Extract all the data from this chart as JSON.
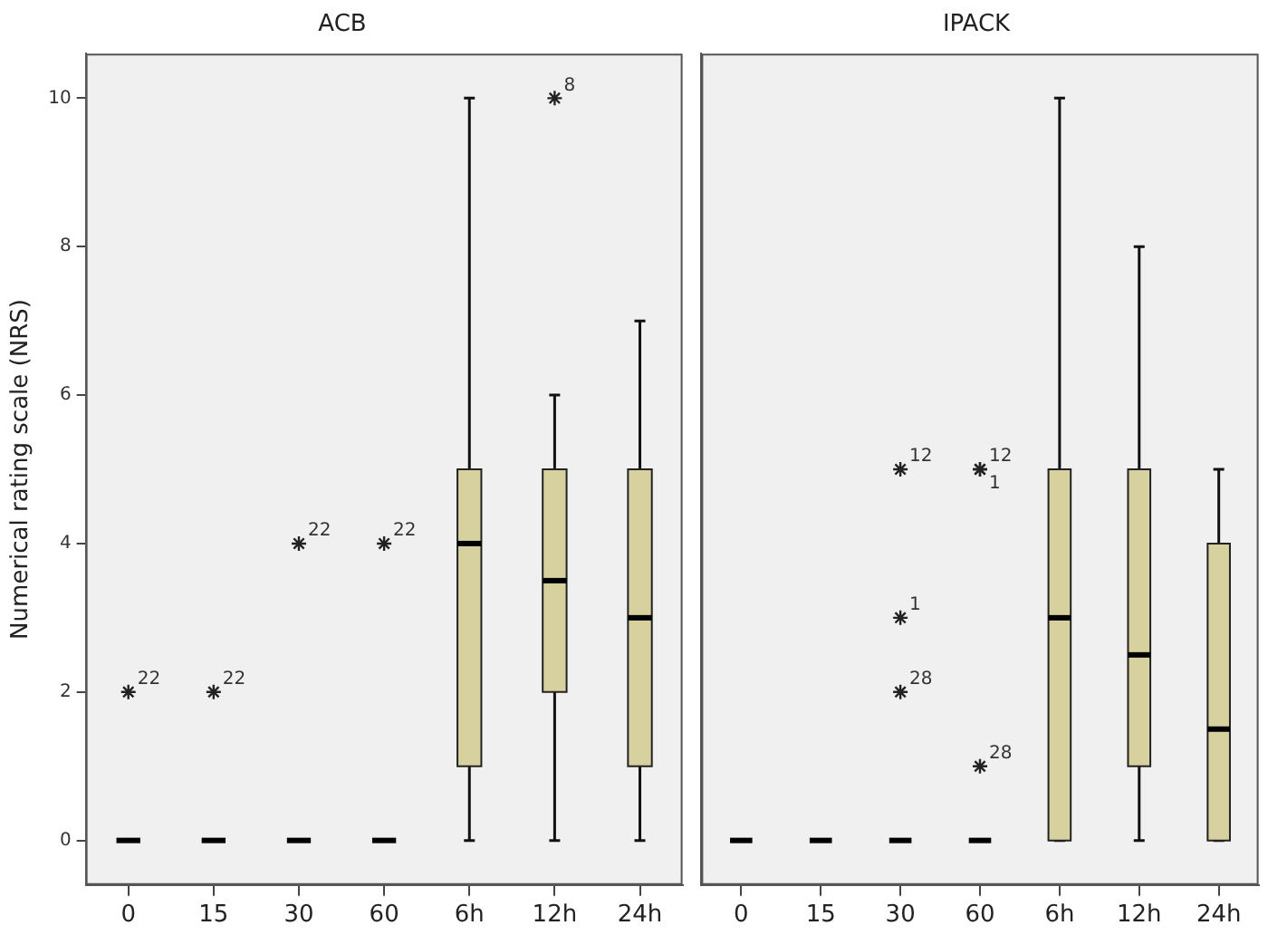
{
  "chart_data": [
    {
      "type": "box",
      "title": "ACB",
      "ylabel": "Numerical rating scale (NRS)",
      "categories": [
        "0",
        "15",
        "30",
        "60",
        "6h",
        "12h",
        "24h"
      ],
      "colors": [
        "#000000",
        "#000000",
        "#000000",
        "#000000",
        "#d6d19e",
        "#d6d19e",
        "#d6d19e"
      ],
      "marker": "star",
      "grid": false,
      "ylim": [
        -0.6,
        10.6
      ],
      "yticks": [
        0,
        2,
        4,
        6,
        8,
        10
      ],
      "boxes": [
        {
          "low": 0,
          "q1": 0,
          "median": 0,
          "q3": 0,
          "high": 0,
          "outliers": [
            2
          ]
        },
        {
          "low": 0,
          "q1": 0,
          "median": 0,
          "q3": 0,
          "high": 0,
          "outliers": [
            2
          ]
        },
        {
          "low": 0,
          "q1": 0,
          "median": 0,
          "q3": 0,
          "high": 0,
          "outliers": [
            4
          ]
        },
        {
          "low": 0,
          "q1": 0,
          "median": 0,
          "q3": 0,
          "high": 0,
          "outliers": [
            4
          ]
        },
        {
          "low": 0,
          "q1": 1,
          "median": 4,
          "q3": 5,
          "high": 10
        },
        {
          "low": 0,
          "q1": 2,
          "median": 3.5,
          "q3": 5,
          "high": 6,
          "outliers": [
            10
          ]
        },
        {
          "low": 0,
          "q1": 1,
          "median": 3,
          "q3": 5,
          "high": 7
        }
      ],
      "annotations": [
        "22",
        "22",
        "22",
        "22",
        "8"
      ]
    },
    {
      "type": "box",
      "title": "IPACK",
      "categories": [
        "0",
        "15",
        "30",
        "60",
        "6h",
        "12h",
        "24h"
      ],
      "colors": [
        "#000000",
        "#000000",
        "#000000",
        "#000000",
        "#d6d19e",
        "#d6d19e",
        "#d6d19e"
      ],
      "marker": "star",
      "grid": false,
      "ylim": [
        -0.6,
        10.6
      ],
      "yticks": [
        0,
        2,
        4,
        6,
        8,
        10
      ],
      "tick_labels": "x",
      "boxes": [
        {
          "low": 0,
          "q1": 0,
          "median": 0,
          "q3": 0,
          "high": 0
        },
        {
          "low": 0,
          "q1": 0,
          "median": 0,
          "q3": 0,
          "high": 0
        },
        {
          "low": 0,
          "q1": 0,
          "median": 0,
          "q3": 0,
          "high": 0,
          "outliers": [
            5,
            3,
            2
          ]
        },
        {
          "low": 0,
          "q1": 0,
          "median": 0,
          "q3": 0,
          "high": 0,
          "outliers": [
            5,
            5,
            1
          ]
        },
        {
          "low": 0,
          "q1": 0,
          "median": 3,
          "q3": 5,
          "high": 10
        },
        {
          "low": 0,
          "q1": 1,
          "median": 2.5,
          "q3": 5,
          "high": 8
        },
        {
          "low": 0,
          "q1": 0,
          "median": 1.5,
          "q3": 4,
          "high": 5
        }
      ],
      "annotations": [
        "12",
        "1",
        "28",
        "12",
        "1",
        "28"
      ]
    }
  ]
}
